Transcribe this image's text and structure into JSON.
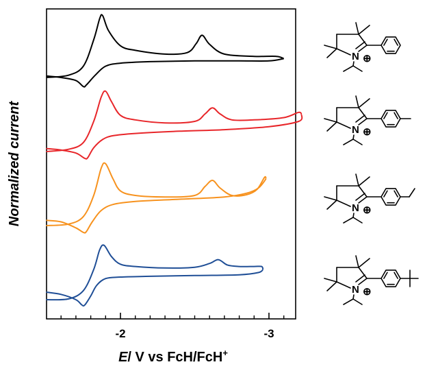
{
  "chart_data": {
    "type": "line",
    "title": "",
    "xlabel": {
      "italic": "E",
      "rest": "/ V vs FcH/FcH",
      "sup": "+"
    },
    "ylabel": "Normalized current",
    "x_axis_reversed": true,
    "xlim": [
      -1.5,
      -3.22
    ],
    "x_major_ticks": [
      -2,
      -3
    ],
    "x_major_tick_labels": [
      "-2",
      "-3"
    ],
    "x_minor_ticks": [
      -1.6,
      -1.7,
      -1.8,
      -1.9,
      -2.1,
      -2.2,
      -2.3,
      -2.4,
      -2.5,
      -2.6,
      -2.7,
      -2.8,
      -2.9,
      -3.1
    ],
    "y_ticks_shown": false,
    "grid": false,
    "legend": "none",
    "series": [
      {
        "color": "#000000",
        "peaks_E": [
          -1.88,
          -2.55
        ],
        "return_peak_E": -1.75,
        "offset": 3,
        "forward": [
          [
            -1.5,
            0.0
          ],
          [
            -1.65,
            0.03
          ],
          [
            -1.75,
            0.15
          ],
          [
            -1.82,
            0.5
          ],
          [
            -1.86,
            0.78
          ],
          [
            -1.88,
            0.82
          ],
          [
            -1.92,
            0.62
          ],
          [
            -2.0,
            0.42
          ],
          [
            -2.1,
            0.36
          ],
          [
            -2.3,
            0.31
          ],
          [
            -2.45,
            0.33
          ],
          [
            -2.51,
            0.45
          ],
          [
            -2.55,
            0.56
          ],
          [
            -2.6,
            0.44
          ],
          [
            -2.7,
            0.31
          ],
          [
            -2.9,
            0.28
          ],
          [
            -3.05,
            0.28
          ],
          [
            -3.1,
            0.25
          ]
        ],
        "reverse": [
          [
            -3.1,
            0.25
          ],
          [
            -3.0,
            0.22
          ],
          [
            -2.8,
            0.22
          ],
          [
            -2.5,
            0.22
          ],
          [
            -2.2,
            0.21
          ],
          [
            -2.0,
            0.19
          ],
          [
            -1.9,
            0.15
          ],
          [
            -1.83,
            0.03
          ],
          [
            -1.77,
            -0.1
          ],
          [
            -1.75,
            -0.12
          ],
          [
            -1.7,
            -0.04
          ],
          [
            -1.6,
            0.0
          ],
          [
            -1.5,
            0.02
          ]
        ]
      },
      {
        "color": "#e8262a",
        "peaks_E": [
          -1.9,
          -2.62
        ],
        "return_peak_E": -1.77,
        "offset": 2,
        "forward": [
          [
            -1.5,
            0.0
          ],
          [
            -1.65,
            0.03
          ],
          [
            -1.75,
            0.12
          ],
          [
            -1.82,
            0.4
          ],
          [
            -1.87,
            0.72
          ],
          [
            -1.9,
            0.8
          ],
          [
            -1.94,
            0.66
          ],
          [
            -2.0,
            0.48
          ],
          [
            -2.1,
            0.42
          ],
          [
            -2.3,
            0.38
          ],
          [
            -2.5,
            0.4
          ],
          [
            -2.57,
            0.5
          ],
          [
            -2.62,
            0.58
          ],
          [
            -2.67,
            0.5
          ],
          [
            -2.75,
            0.42
          ],
          [
            -2.9,
            0.42
          ],
          [
            -3.1,
            0.45
          ],
          [
            -3.2,
            0.52
          ],
          [
            -3.22,
            0.49
          ]
        ],
        "reverse": [
          [
            -3.22,
            0.49
          ],
          [
            -3.2,
            0.4
          ],
          [
            -3.0,
            0.33
          ],
          [
            -2.7,
            0.29
          ],
          [
            -2.4,
            0.27
          ],
          [
            -2.1,
            0.24
          ],
          [
            -1.95,
            0.21
          ],
          [
            -1.88,
            0.16
          ],
          [
            -1.82,
            0.05
          ],
          [
            -1.78,
            -0.08
          ],
          [
            -1.76,
            -0.09
          ],
          [
            -1.7,
            -0.02
          ],
          [
            -1.6,
            0.02
          ],
          [
            -1.5,
            0.04
          ]
        ]
      },
      {
        "color": "#f7921e",
        "peaks_E": [
          -1.9,
          -2.62
        ],
        "return_peak_E": -1.76,
        "offset": 1,
        "forward": [
          [
            -1.5,
            0.0
          ],
          [
            -1.65,
            0.02
          ],
          [
            -1.75,
            0.12
          ],
          [
            -1.82,
            0.4
          ],
          [
            -1.87,
            0.76
          ],
          [
            -1.9,
            0.82
          ],
          [
            -1.95,
            0.62
          ],
          [
            -2.0,
            0.46
          ],
          [
            -2.1,
            0.4
          ],
          [
            -2.3,
            0.38
          ],
          [
            -2.5,
            0.4
          ],
          [
            -2.57,
            0.52
          ],
          [
            -2.62,
            0.6
          ],
          [
            -2.67,
            0.5
          ],
          [
            -2.75,
            0.4
          ],
          [
            -2.85,
            0.41
          ],
          [
            -2.92,
            0.48
          ],
          [
            -2.97,
            0.64
          ],
          [
            -2.98,
            0.62
          ]
        ],
        "reverse": [
          [
            -2.98,
            0.62
          ],
          [
            -2.93,
            0.5
          ],
          [
            -2.85,
            0.43
          ],
          [
            -2.7,
            0.38
          ],
          [
            -2.4,
            0.35
          ],
          [
            -2.1,
            0.32
          ],
          [
            -1.95,
            0.28
          ],
          [
            -1.87,
            0.2
          ],
          [
            -1.81,
            0.05
          ],
          [
            -1.77,
            -0.08
          ],
          [
            -1.75,
            -0.09
          ],
          [
            -1.7,
            -0.03
          ],
          [
            -1.6,
            0.05
          ],
          [
            -1.5,
            0.07
          ]
        ]
      },
      {
        "color": "#1f4e96",
        "peaks_E": [
          -1.89,
          -2.66
        ],
        "return_peak_E": -1.75,
        "offset": 0,
        "forward": [
          [
            -1.5,
            0.0
          ],
          [
            -1.65,
            0.01
          ],
          [
            -1.75,
            0.12
          ],
          [
            -1.82,
            0.4
          ],
          [
            -1.86,
            0.66
          ],
          [
            -1.89,
            0.72
          ],
          [
            -1.94,
            0.57
          ],
          [
            -2.0,
            0.47
          ],
          [
            -2.1,
            0.44
          ],
          [
            -2.3,
            0.42
          ],
          [
            -2.5,
            0.43
          ],
          [
            -2.6,
            0.48
          ],
          [
            -2.66,
            0.53
          ],
          [
            -2.72,
            0.46
          ],
          [
            -2.8,
            0.44
          ],
          [
            -2.9,
            0.44
          ],
          [
            -2.95,
            0.44
          ],
          [
            -2.96,
            0.4
          ]
        ],
        "reverse": [
          [
            -2.96,
            0.4
          ],
          [
            -2.93,
            0.36
          ],
          [
            -2.8,
            0.33
          ],
          [
            -2.5,
            0.32
          ],
          [
            -2.2,
            0.31
          ],
          [
            -2.0,
            0.3
          ],
          [
            -1.9,
            0.28
          ],
          [
            -1.84,
            0.19
          ],
          [
            -1.8,
            0.05
          ],
          [
            -1.76,
            -0.07
          ],
          [
            -1.74,
            -0.07
          ],
          [
            -1.7,
            0.0
          ],
          [
            -1.6,
            0.07
          ],
          [
            -1.5,
            0.1
          ]
        ]
      }
    ]
  },
  "structures": [
    {
      "n_label": "N",
      "charge_label": "⊕",
      "para_substituent": "none",
      "color_match": "#000000"
    },
    {
      "n_label": "N",
      "charge_label": "⊕",
      "para_substituent": "methyl",
      "color_match": "#e8262a"
    },
    {
      "n_label": "N",
      "charge_label": "⊕",
      "para_substituent": "ethyl",
      "color_match": "#f7921e"
    },
    {
      "n_label": "N",
      "charge_label": "⊕",
      "para_substituent": "tert-butyl",
      "color_match": "#1f4e96"
    }
  ]
}
